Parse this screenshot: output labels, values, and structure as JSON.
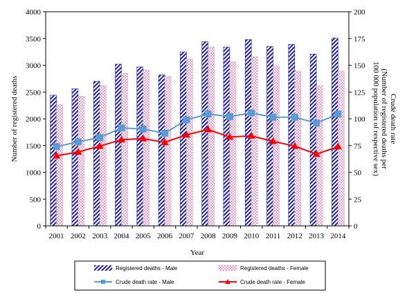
{
  "chart_data": {
    "type": "bar",
    "categories": [
      "2001",
      "2002",
      "2003",
      "2004",
      "2005",
      "2006",
      "2007",
      "2008",
      "2009",
      "2010",
      "2011",
      "2012",
      "2013",
      "2014"
    ],
    "xlabel": "Year",
    "ylabel_left": "Number of registered deaths",
    "ylabel_right": "Crude death rate",
    "ylabel_right_sub": "(Number of registered deaths per",
    "ylabel_right_sub2": "100 000 population of respective sex)",
    "ylim_left": [
      0,
      4000
    ],
    "ylim_right": [
      0,
      200
    ],
    "yticks_left": [
      "0",
      "500",
      "1000",
      "1500",
      "2000",
      "2500",
      "3000",
      "3500",
      "4000"
    ],
    "yticks_right": [
      "0",
      "25",
      "50",
      "75",
      "100",
      "125",
      "150",
      "175",
      "200"
    ],
    "series": [
      {
        "name": "Registered deaths - Male",
        "kind": "bar",
        "axis": "left",
        "pattern": "diagonal-blue",
        "values": [
          2440,
          2560,
          2700,
          3020,
          2970,
          2820,
          3250,
          3440,
          3340,
          3480,
          3350,
          3390,
          3210,
          3510
        ]
      },
      {
        "name": "Registered deaths - Female",
        "kind": "bar",
        "axis": "left",
        "pattern": "checker-pink",
        "values": [
          2270,
          2420,
          2620,
          2850,
          2910,
          2790,
          3120,
          3340,
          3070,
          3160,
          2990,
          2890,
          2620,
          2890
        ]
      },
      {
        "name": "Crude death rate - Male",
        "kind": "line",
        "axis": "right",
        "color": "#5b9bd5",
        "marker": "square",
        "values": [
          74,
          78.5,
          82.5,
          91.5,
          90.5,
          86.5,
          99,
          104.5,
          102,
          105.5,
          101.5,
          101.5,
          96,
          104.5
        ]
      },
      {
        "name": "Crude death rate - Female",
        "kind": "line",
        "axis": "right",
        "color": "#ff0000",
        "marker": "triangle",
        "values": [
          65.5,
          69,
          74.5,
          80.5,
          81.5,
          78,
          85,
          90,
          83,
          84,
          79,
          74.5,
          67,
          74
        ]
      }
    ],
    "colors": {
      "male_bar": "#1f1faa",
      "female_bar": "#e8a0c8",
      "male_line": "#5b9bd5",
      "female_line": "#ff0000"
    },
    "legend_position": "bottom",
    "grid": false
  }
}
